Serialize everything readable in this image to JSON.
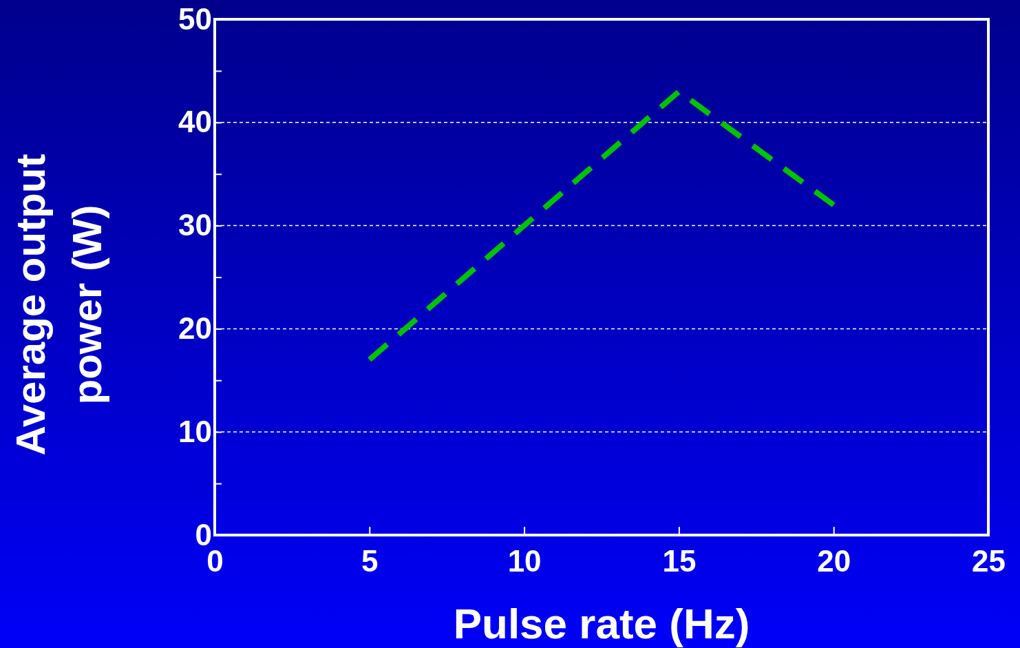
{
  "chart_data": {
    "type": "line",
    "xlabel": "Pulse rate (Hz)",
    "ylabel": "Average output power (W)",
    "x": [
      5,
      10,
      15,
      20
    ],
    "series": [
      {
        "color": "#00c400",
        "values": [
          17,
          30,
          43,
          32
        ]
      }
    ],
    "xlim": [
      0,
      25
    ],
    "xticks": [
      0,
      5,
      10,
      15,
      20,
      25
    ],
    "ylim": [
      0,
      50
    ],
    "yticks": [
      0,
      {
        "value": 5,
        "label": null
      },
      10,
      {
        "value": 15,
        "label": null
      },
      20,
      {
        "value": 25,
        "label": null
      },
      30,
      {
        "value": 35,
        "label": null
      },
      40,
      {
        "value": 45,
        "label": null
      },
      50
    ],
    "grid": "y",
    "marker": "none",
    "line_style": "dashed"
  }
}
